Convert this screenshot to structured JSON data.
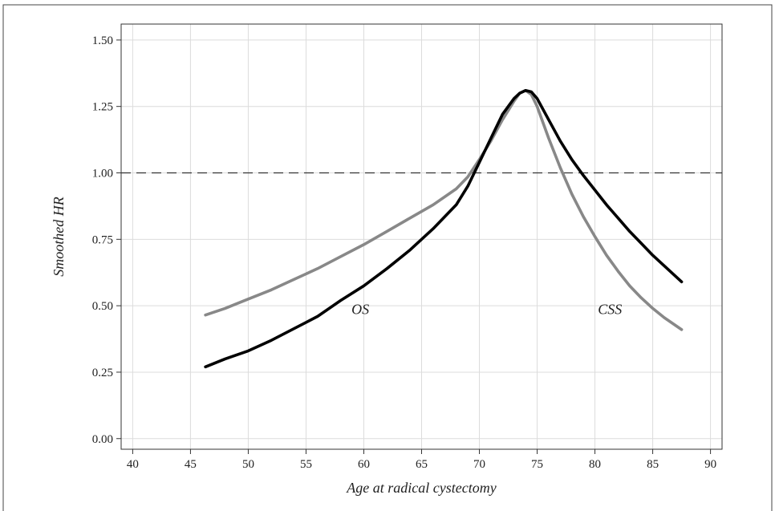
{
  "chart_data": {
    "type": "line",
    "title": "",
    "xlabel": "Age at radical cystectomy",
    "ylabel": "Smoothed HR",
    "xlim": [
      39,
      91
    ],
    "ylim": [
      -0.04,
      1.56
    ],
    "xticks": [
      40,
      45,
      50,
      55,
      60,
      65,
      70,
      75,
      80,
      85,
      90
    ],
    "yticks": [
      0.0,
      0.25,
      0.5,
      0.75,
      1.0,
      1.25,
      1.5
    ],
    "ytick_labels": [
      "0.00",
      "0.25",
      "0.50",
      "0.75",
      "1.00",
      "1.25",
      "1.50"
    ],
    "grid": true,
    "legend": "none",
    "reference_line": {
      "y": 1.0,
      "style": "dashed",
      "color": "#333333"
    },
    "series": [
      {
        "color": "#000000",
        "x": [
          46.3,
          48,
          50,
          52,
          54,
          56,
          58,
          60,
          62,
          64,
          66,
          68,
          69,
          70,
          71,
          72,
          73,
          73.5,
          74,
          74.5,
          75,
          76,
          77,
          78,
          79,
          80,
          81,
          82,
          83,
          84,
          85,
          86,
          87.5
        ],
        "y": [
          0.27,
          0.3,
          0.33,
          0.37,
          0.415,
          0.46,
          0.52,
          0.575,
          0.64,
          0.71,
          0.79,
          0.88,
          0.95,
          1.04,
          1.13,
          1.22,
          1.28,
          1.3,
          1.31,
          1.305,
          1.28,
          1.2,
          1.12,
          1.05,
          0.99,
          0.935,
          0.88,
          0.83,
          0.78,
          0.735,
          0.69,
          0.65,
          0.59
        ]
      },
      {
        "color": "#888888",
        "x": [
          46.3,
          48,
          50,
          52,
          54,
          56,
          58,
          60,
          62,
          64,
          66,
          68,
          69,
          70,
          71,
          72,
          73,
          73.5,
          74,
          74.5,
          75,
          76,
          77,
          78,
          79,
          80,
          81,
          82,
          83,
          84,
          85,
          86,
          87.5
        ],
        "y": [
          0.465,
          0.49,
          0.525,
          0.56,
          0.6,
          0.64,
          0.685,
          0.73,
          0.78,
          0.83,
          0.88,
          0.94,
          0.985,
          1.05,
          1.12,
          1.2,
          1.27,
          1.3,
          1.31,
          1.295,
          1.25,
          1.13,
          1.02,
          0.92,
          0.835,
          0.76,
          0.69,
          0.63,
          0.575,
          0.53,
          0.49,
          0.455,
          0.41
        ]
      }
    ],
    "annotations": [
      {
        "text": "OS",
        "x": 59.7,
        "y": 0.49
      },
      {
        "text": "CSS",
        "x": 81.3,
        "y": 0.49
      }
    ]
  }
}
